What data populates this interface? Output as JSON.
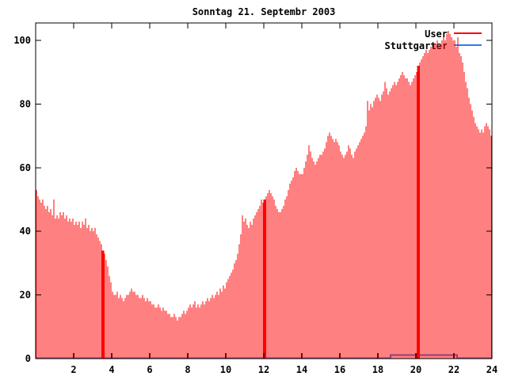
{
  "colors": {
    "user_series": "#ff0000",
    "stuttgarter_series": "#2d7cf0",
    "axis": "#000000",
    "background": "#ffffff"
  },
  "chart_data": {
    "type": "bar",
    "title": "Sonntag 21. Septembr 2003",
    "xlabel": "",
    "ylabel": "",
    "xlim": [
      0,
      24
    ],
    "ylim": [
      0,
      105.5
    ],
    "x_ticks": [
      2,
      4,
      6,
      8,
      10,
      12,
      14,
      16,
      18,
      20,
      22,
      24
    ],
    "y_ticks": [
      0,
      20,
      40,
      60,
      80,
      100
    ],
    "grid": false,
    "legend_position": "top-right-inside",
    "sample_interval_minutes": 5,
    "series": [
      {
        "name": "User",
        "style": "impulses",
        "color": "#ff0000",
        "start_hour": 0,
        "wide_bar_indices": [
          42,
          144,
          241
        ],
        "values": [
          53,
          51,
          50,
          49,
          50,
          48,
          47,
          48,
          46,
          47,
          45,
          50,
          44,
          45,
          44,
          46,
          45,
          46,
          44,
          45,
          43,
          44,
          43,
          44,
          42,
          43,
          42,
          43,
          41,
          43,
          42,
          44,
          41,
          42,
          40,
          41,
          40,
          41,
          39,
          38,
          37,
          36,
          34,
          33,
          31,
          29,
          26,
          24,
          21,
          20,
          20,
          21,
          19,
          20,
          19,
          18,
          19,
          20,
          20,
          21,
          22,
          21,
          21,
          20,
          20,
          19,
          19,
          20,
          19,
          18,
          19,
          18,
          18,
          17,
          17,
          16,
          16,
          17,
          16,
          15,
          16,
          15,
          15,
          14,
          14,
          13,
          13,
          14,
          13,
          12,
          13,
          13,
          14,
          15,
          14,
          15,
          16,
          17,
          16,
          17,
          18,
          16,
          17,
          16,
          17,
          18,
          17,
          18,
          19,
          18,
          19,
          20,
          19,
          20,
          21,
          20,
          22,
          21,
          23,
          22,
          24,
          25,
          26,
          27,
          28,
          30,
          31,
          33,
          36,
          39,
          45,
          43,
          44,
          42,
          41,
          43,
          42,
          44,
          45,
          46,
          47,
          48,
          50,
          49,
          50,
          51,
          52,
          53,
          52,
          51,
          50,
          48,
          47,
          46,
          46,
          47,
          48,
          50,
          51,
          53,
          55,
          56,
          57,
          59,
          60,
          59,
          58,
          58,
          58,
          60,
          62,
          64,
          67,
          65,
          63,
          62,
          61,
          62,
          63,
          64,
          64,
          65,
          66,
          68,
          70,
          71,
          70,
          69,
          68,
          69,
          68,
          67,
          65,
          64,
          63,
          64,
          65,
          67,
          66,
          64,
          63,
          65,
          66,
          67,
          68,
          69,
          70,
          71,
          73,
          81,
          78,
          80,
          79,
          81,
          82,
          83,
          82,
          81,
          83,
          84,
          87,
          85,
          83,
          84,
          85,
          86,
          87,
          86,
          87,
          88,
          89,
          90,
          89,
          88,
          88,
          87,
          86,
          87,
          88,
          89,
          90,
          92,
          93,
          94,
          95,
          96,
          97,
          96,
          97,
          98,
          98,
          99,
          99,
          100,
          98,
          99,
          100,
          101,
          100,
          102,
          103,
          102,
          101,
          100,
          100,
          98,
          101,
          96,
          95,
          93,
          90,
          87,
          85,
          82,
          80,
          78,
          76,
          74,
          73,
          72,
          71,
          72,
          71,
          73,
          74,
          73,
          72,
          70
        ]
      },
      {
        "name": "Stuttgarter",
        "style": "line",
        "color": "#2d7cf0",
        "step_points": [
          [
            0,
            0.15
          ],
          [
            18.67,
            0.15
          ],
          [
            18.67,
            1.1
          ],
          [
            22.17,
            1.1
          ],
          [
            22.17,
            0.15
          ],
          [
            24,
            0.15
          ]
        ]
      }
    ]
  }
}
